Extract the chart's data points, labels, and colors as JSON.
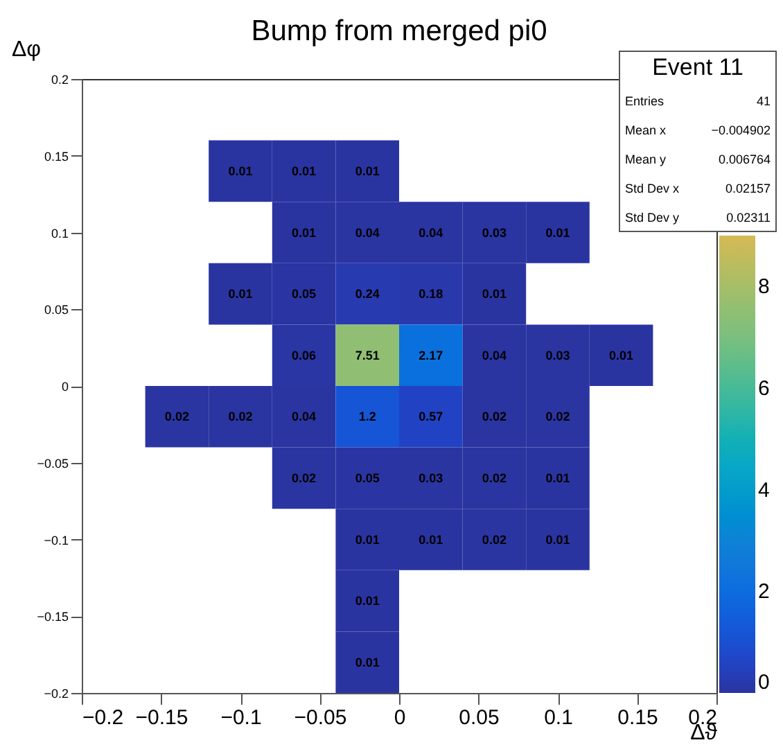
{
  "chart_data": {
    "type": "heatmap",
    "title": "Bump from merged pi0",
    "xlabel": "Δϑ",
    "ylabel": "Δφ",
    "x": [
      -0.14,
      -0.1,
      -0.06,
      -0.02,
      0.02,
      0.06,
      0.1,
      0.14
    ],
    "y": [
      0.14,
      0.1,
      0.06,
      0.02,
      -0.02,
      -0.06,
      -0.1,
      -0.14,
      -0.18
    ],
    "cells": [
      [
        null,
        0.01,
        0.01,
        0.01,
        null,
        null,
        null,
        null
      ],
      [
        null,
        null,
        0.01,
        0.04,
        0.04,
        0.03,
        0.01,
        null
      ],
      [
        null,
        0.01,
        0.05,
        0.24,
        0.18,
        0.01,
        null,
        null
      ],
      [
        null,
        null,
        0.06,
        7.51,
        2.17,
        0.04,
        0.03,
        0.01
      ],
      [
        0.02,
        0.02,
        0.04,
        1.2,
        0.57,
        0.02,
        0.02,
        null
      ],
      [
        null,
        null,
        0.02,
        0.05,
        0.03,
        0.02,
        0.01,
        null
      ],
      [
        null,
        null,
        null,
        0.01,
        0.01,
        0.02,
        0.01,
        null
      ],
      [
        null,
        null,
        null,
        0.01,
        null,
        null,
        null,
        null
      ],
      [
        null,
        null,
        null,
        0.01,
        null,
        null,
        null,
        null
      ]
    ],
    "data_labels": true,
    "xlim": [
      -0.2,
      0.2
    ],
    "xticks": [
      {
        "value": -0.2,
        "label": "−0.2"
      },
      {
        "value": -0.15,
        "label": "−0.15"
      },
      {
        "value": -0.1,
        "label": "−0.1"
      },
      {
        "value": -0.05,
        "label": "−0.05"
      },
      0,
      0.05,
      0.1,
      0.15,
      0.2
    ],
    "ylim": [
      -0.2,
      0.2
    ],
    "yticks": [
      {
        "value": -0.2,
        "label": "−0.2"
      },
      {
        "value": -0.15,
        "label": "−0.15"
      },
      {
        "value": -0.1,
        "label": "−0.1"
      },
      {
        "value": -0.05,
        "label": "−0.05"
      },
      0,
      0.05,
      0.1,
      0.15,
      0.2
    ],
    "clim": [
      0,
      9
    ],
    "cticks": [
      0,
      2,
      4,
      6,
      8
    ],
    "colors": [
      "#2a34a0",
      "#1f45c8",
      "#1458d8",
      "#0f6ae0",
      "#1478d8",
      "#1387d4",
      "#0e99cc",
      "#09a8c6",
      "#1fb2b0",
      "#3cb89e",
      "#5dbd8c",
      "#7ebf7c",
      "#98bf6f",
      "#b8bd62",
      "#d6b955"
    ],
    "grid": false,
    "annotations": [
      "Event 11",
      "Entries",
      "41",
      "Mean x",
      "−0.004902",
      "Mean y",
      "0.006764",
      "Std Dev x",
      "0.02157",
      "Std Dev y",
      "0.02311"
    ]
  }
}
